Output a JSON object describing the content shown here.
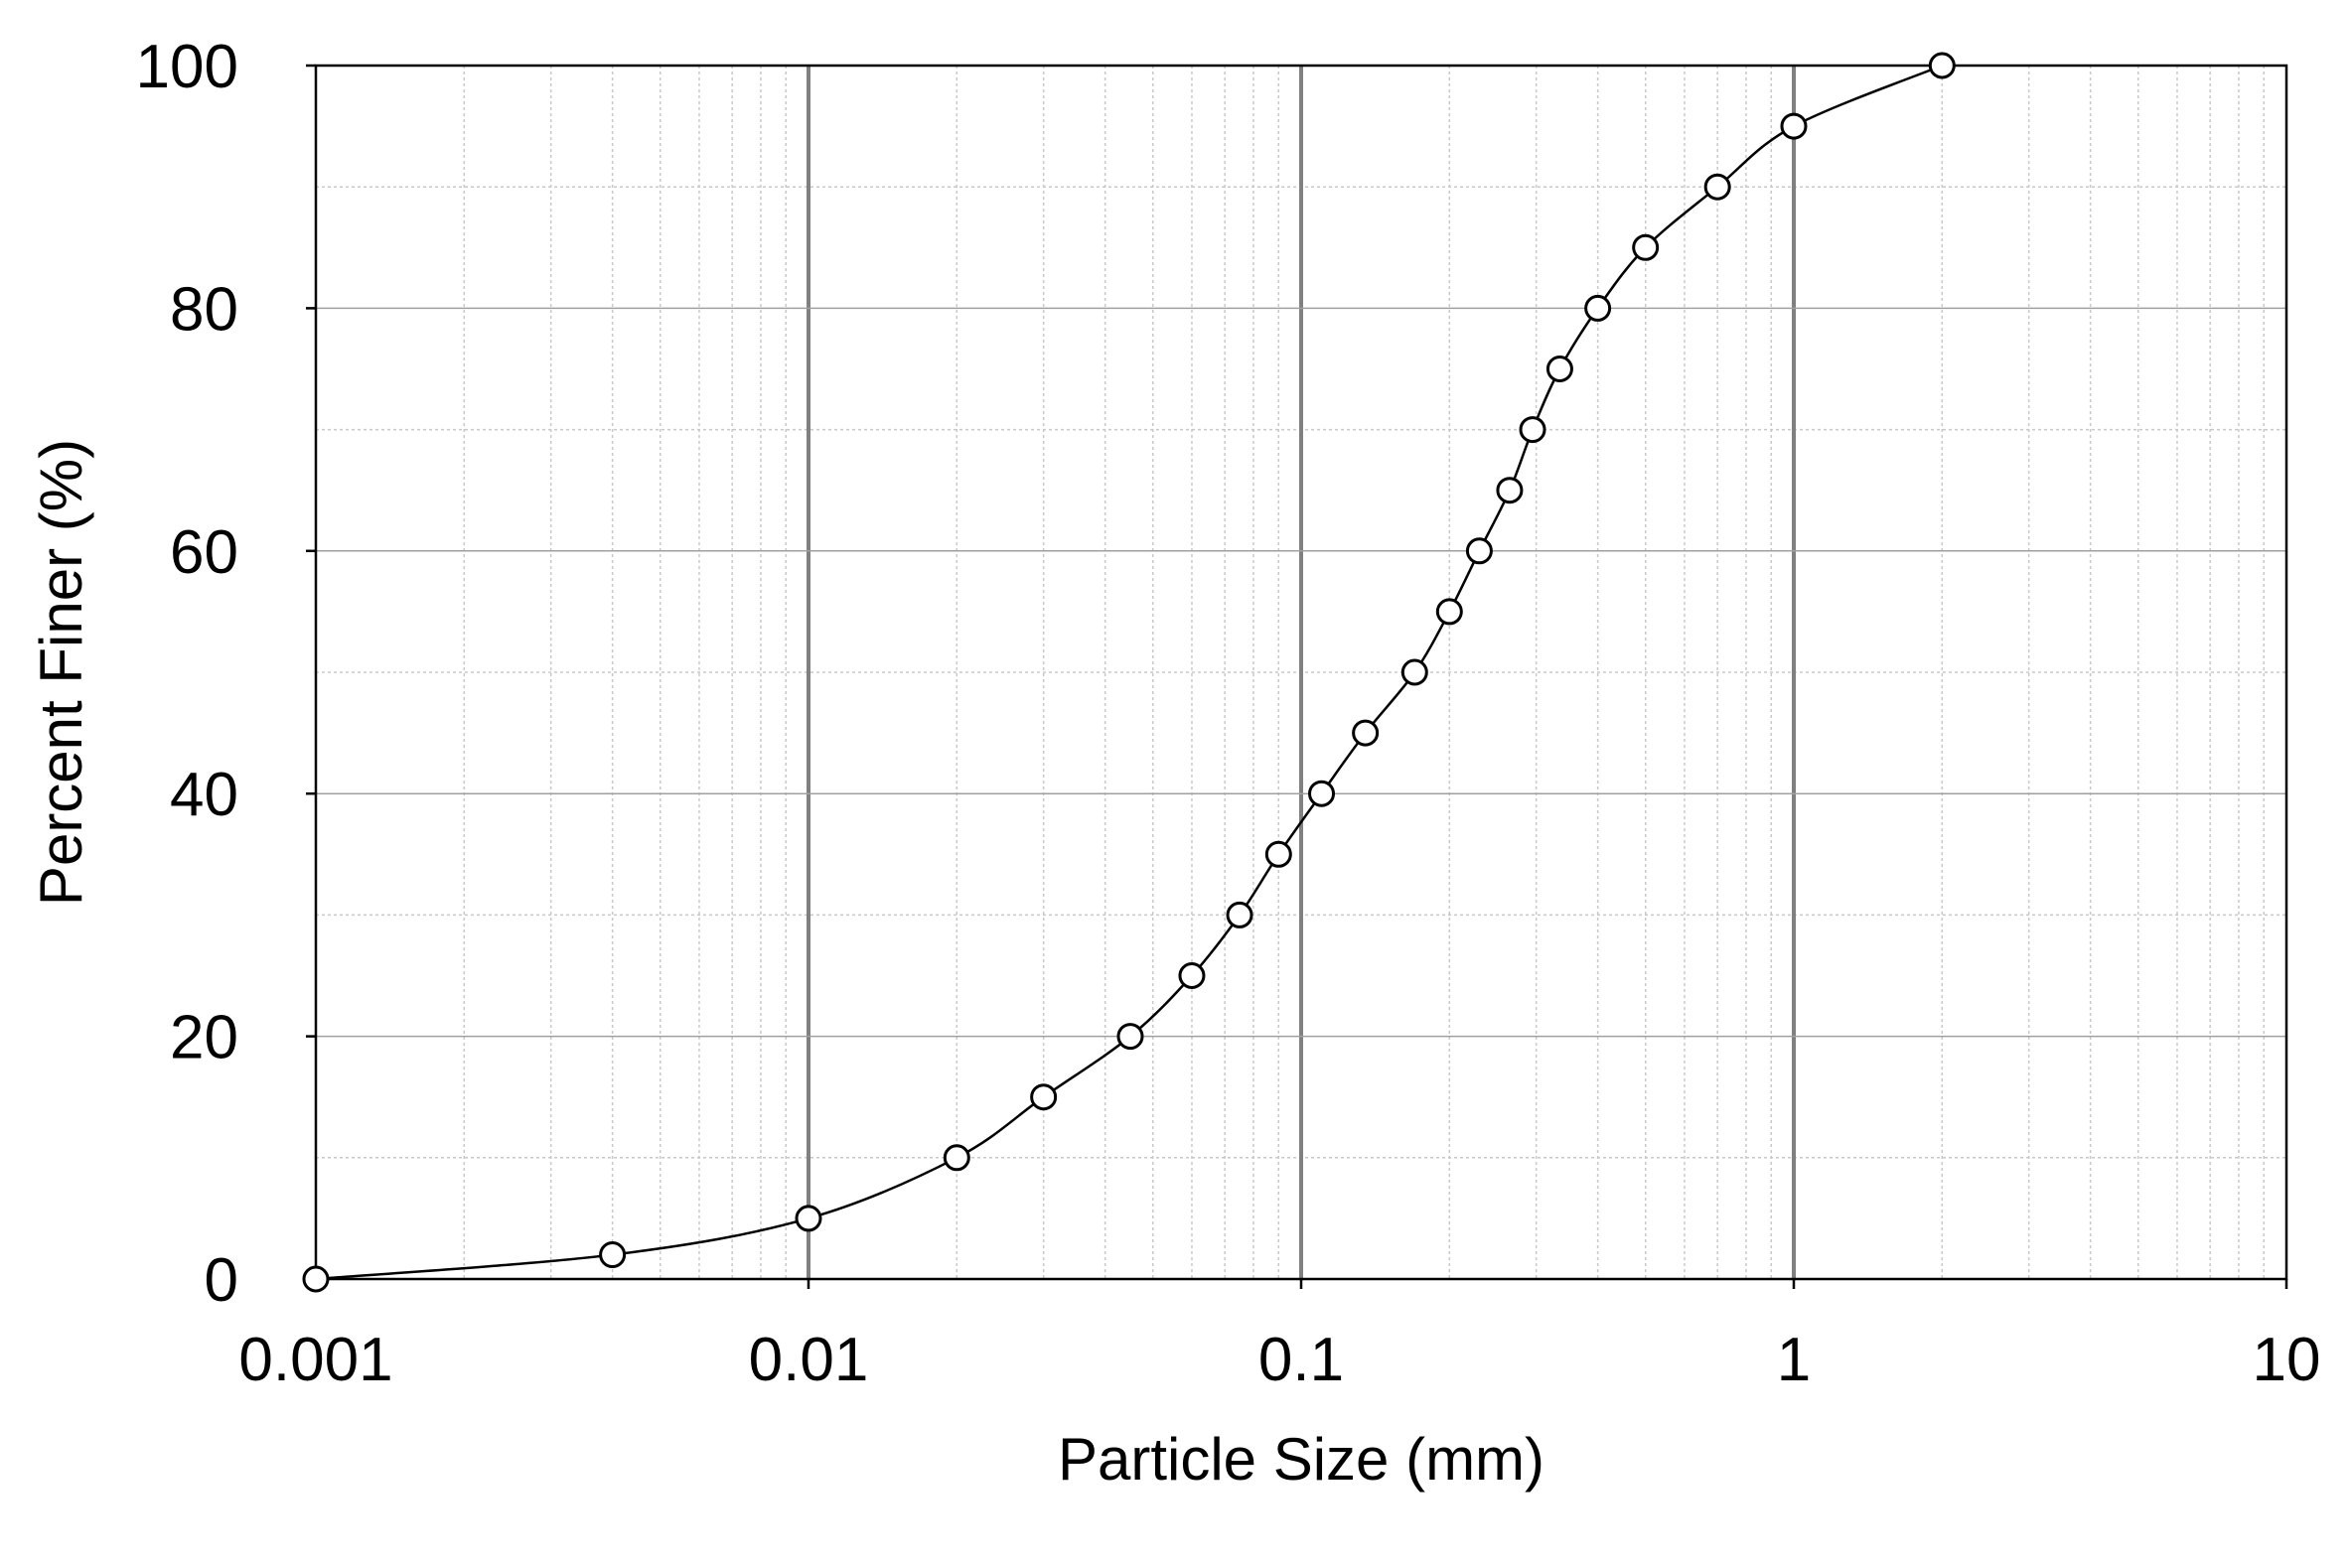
{
  "chart_data": {
    "type": "line",
    "title": "",
    "xlabel": "Particle Size (mm)",
    "ylabel": "Percent Finer (%)",
    "xscale": "log",
    "xlim": [
      0.001,
      10
    ],
    "ylim": [
      0,
      100
    ],
    "grid": true,
    "legend": "none",
    "x_ticks": [
      "0.001",
      "0.01",
      "0.1",
      "1",
      "10"
    ],
    "y_ticks": [
      "0",
      "20",
      "40",
      "60",
      "80",
      "100"
    ],
    "series": [
      {
        "marker": "open-circle",
        "color": "#000000",
        "points": [
          {
            "x": 0.001,
            "y": 0
          },
          {
            "x": 0.004,
            "y": 2
          },
          {
            "x": 0.01,
            "y": 5
          },
          {
            "x": 0.02,
            "y": 10
          },
          {
            "x": 0.03,
            "y": 15
          },
          {
            "x": 0.045,
            "y": 20
          },
          {
            "x": 0.06,
            "y": 25
          },
          {
            "x": 0.075,
            "y": 30
          },
          {
            "x": 0.09,
            "y": 35
          },
          {
            "x": 0.11,
            "y": 40
          },
          {
            "x": 0.135,
            "y": 45
          },
          {
            "x": 0.17,
            "y": 50
          },
          {
            "x": 0.2,
            "y": 55
          },
          {
            "x": 0.23,
            "y": 60
          },
          {
            "x": 0.265,
            "y": 65
          },
          {
            "x": 0.295,
            "y": 70
          },
          {
            "x": 0.335,
            "y": 75
          },
          {
            "x": 0.4,
            "y": 80
          },
          {
            "x": 0.5,
            "y": 85
          },
          {
            "x": 0.7,
            "y": 90
          },
          {
            "x": 1.0,
            "y": 95
          },
          {
            "x": 2.0,
            "y": 100
          }
        ]
      }
    ]
  }
}
